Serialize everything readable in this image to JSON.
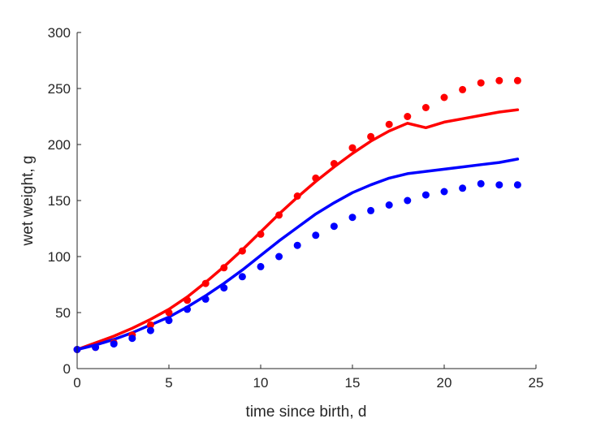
{
  "chart_data": {
    "type": "scatter",
    "title": "",
    "xlabel": "time since birth, d",
    "ylabel": "wet weight, g",
    "xlim": [
      0,
      25
    ],
    "ylim": [
      0,
      300
    ],
    "xticks": [
      "0",
      "5",
      "10",
      "15",
      "20",
      "25"
    ],
    "yticks": [
      "0",
      "50",
      "100",
      "150",
      "200",
      "250",
      "300"
    ],
    "grid": false,
    "legend": "none",
    "series": [
      {
        "color": "#ff0000",
        "kind": "points",
        "x": [
          0,
          1,
          2,
          3,
          4,
          5,
          6,
          7,
          8,
          9,
          10,
          11,
          12,
          13,
          14,
          15,
          16,
          17,
          18,
          19,
          20,
          21,
          22,
          23,
          24
        ],
        "y": [
          17,
          19,
          23,
          30,
          39,
          50,
          61,
          76,
          90,
          105,
          120,
          137,
          154,
          170,
          183,
          197,
          207,
          218,
          225,
          233,
          242,
          249,
          255,
          257,
          257
        ]
      },
      {
        "color": "#0000ff",
        "kind": "points",
        "x": [
          0,
          1,
          2,
          3,
          4,
          5,
          6,
          7,
          8,
          9,
          10,
          11,
          12,
          13,
          14,
          15,
          16,
          17,
          18,
          19,
          20,
          21,
          22,
          23,
          24
        ],
        "y": [
          17,
          19,
          22,
          27,
          34,
          43,
          53,
          62,
          72,
          82,
          91,
          100,
          110,
          119,
          127,
          135,
          141,
          146,
          150,
          155,
          158,
          161,
          165,
          164,
          164
        ]
      },
      {
        "color": "#ff0000",
        "kind": "line",
        "x": [
          0,
          1,
          2,
          3,
          4,
          5,
          6,
          7,
          8,
          9,
          10,
          11,
          12,
          13,
          14,
          15,
          16,
          17,
          18,
          19,
          20,
          21,
          22,
          23,
          24
        ],
        "y": [
          17,
          23,
          29,
          36,
          44,
          53,
          64,
          77,
          91,
          106,
          122,
          138,
          153,
          167,
          180,
          192,
          203,
          212,
          219,
          215,
          220,
          223,
          226,
          229,
          231
        ]
      },
      {
        "color": "#0000ff",
        "kind": "line",
        "x": [
          0,
          1,
          2,
          3,
          4,
          5,
          6,
          7,
          8,
          9,
          10,
          11,
          12,
          13,
          14,
          15,
          16,
          17,
          18,
          19,
          20,
          21,
          22,
          23,
          24
        ],
        "y": [
          17,
          21,
          26,
          32,
          39,
          46,
          55,
          65,
          76,
          88,
          101,
          114,
          126,
          138,
          148,
          157,
          164,
          170,
          174,
          176,
          178,
          180,
          182,
          184,
          187
        ]
      }
    ]
  }
}
